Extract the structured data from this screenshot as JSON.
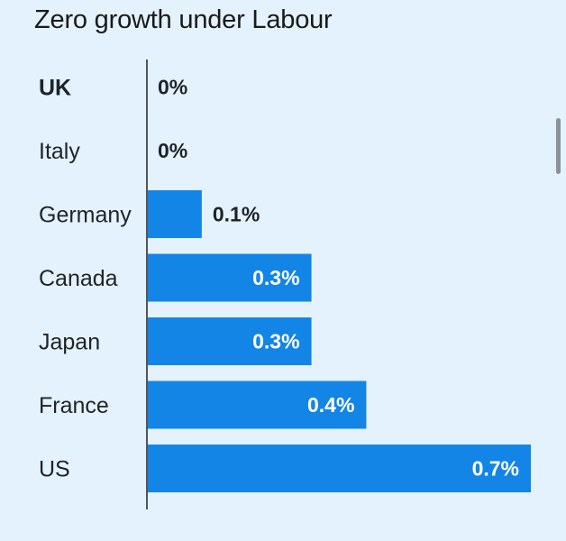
{
  "chart_data": {
    "type": "bar",
    "orientation": "horizontal",
    "title": "Zero growth under Labour",
    "categories": [
      "UK",
      "Italy",
      "Germany",
      "Canada",
      "Japan",
      "France",
      "US"
    ],
    "values": [
      0,
      0,
      0.1,
      0.3,
      0.3,
      0.4,
      0.7
    ],
    "value_labels": [
      "0%",
      "0%",
      "0.1%",
      "0.3%",
      "0.3%",
      "0.4%",
      "0.7%"
    ],
    "highlight_category": "UK",
    "xlim": [
      0,
      0.7
    ],
    "xlabel": "",
    "ylabel": "",
    "grid": false,
    "legend": "none"
  },
  "colors": {
    "background": "#e3f2fc",
    "bar": "#1385e6",
    "text": "#1f2328",
    "label_inside": "#ffffff"
  }
}
